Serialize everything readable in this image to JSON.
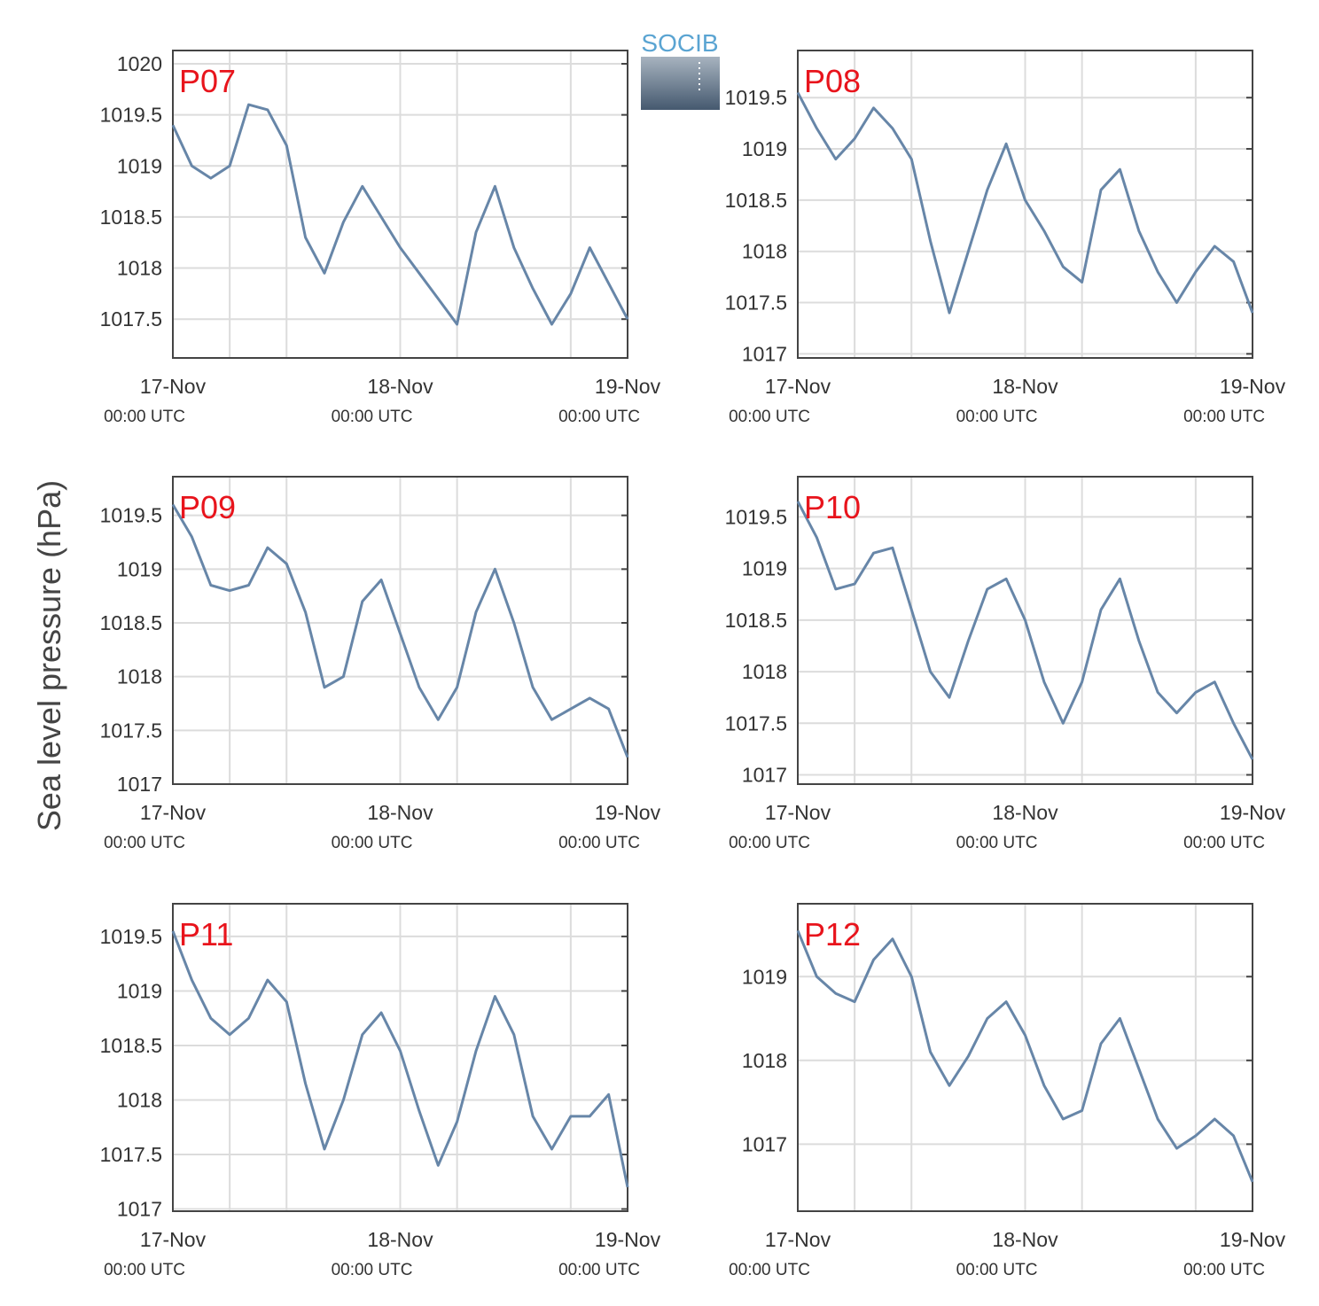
{
  "logo": "SOCIB",
  "ylabel": "Sea level pressure (hPa)",
  "chart_data": [
    {
      "type": "line",
      "title": "P07",
      "title_color": "#e8141c",
      "color": "#6786a8",
      "grid": true,
      "x": [
        0,
        2,
        4,
        6,
        8,
        10,
        12,
        14,
        16,
        18,
        20,
        22,
        24,
        26,
        28,
        30,
        32,
        34,
        36,
        38,
        40,
        42,
        44,
        46,
        48
      ],
      "values": [
        1019.4,
        1019.0,
        1018.88,
        1019.0,
        1019.6,
        1019.55,
        1019.2,
        1018.3,
        1017.95,
        1018.45,
        1018.8,
        1018.5,
        1018.2,
        1017.95,
        1017.7,
        1017.45,
        1018.35,
        1018.8,
        1018.2,
        1017.8,
        1017.45,
        1017.75,
        1018.2,
        1017.85,
        1017.5
      ],
      "xlim": [
        0,
        48
      ],
      "xticks": [
        {
          "value": 0,
          "label": "17-Nov",
          "sublabel": "00:00 UTC"
        },
        {
          "value": 24,
          "label": "18-Nov",
          "sublabel": "00:00 UTC"
        },
        {
          "value": 48,
          "label": "19-Nov",
          "sublabel": "00:00 UTC"
        }
      ],
      "xgrid": [
        6,
        12,
        30,
        42
      ],
      "ylim": [
        1017.12,
        1020.13
      ],
      "yticks": [
        1017.5,
        1018,
        1018.5,
        1019,
        1019.5,
        1020
      ]
    },
    {
      "type": "line",
      "title": "P08",
      "title_color": "#e8141c",
      "color": "#6786a8",
      "grid": true,
      "x": [
        0,
        2,
        4,
        6,
        8,
        10,
        12,
        14,
        16,
        18,
        20,
        22,
        24,
        26,
        28,
        30,
        32,
        34,
        36,
        38,
        40,
        42,
        44,
        46,
        48
      ],
      "values": [
        1019.55,
        1019.2,
        1018.9,
        1019.1,
        1019.4,
        1019.2,
        1018.9,
        1018.1,
        1017.4,
        1018.0,
        1018.6,
        1019.05,
        1018.5,
        1018.2,
        1017.85,
        1017.7,
        1018.6,
        1018.8,
        1018.2,
        1017.8,
        1017.5,
        1017.8,
        1018.05,
        1017.9,
        1017.4
      ],
      "xlim": [
        0,
        48
      ],
      "xticks": [
        {
          "value": 0,
          "label": "17-Nov",
          "sublabel": "00:00 UTC"
        },
        {
          "value": 24,
          "label": "18-Nov",
          "sublabel": "00:00 UTC"
        },
        {
          "value": 48,
          "label": "19-Nov",
          "sublabel": "00:00 UTC"
        }
      ],
      "xgrid": [
        6,
        12,
        30,
        42
      ],
      "ylim": [
        1016.96,
        1019.96
      ],
      "yticks": [
        1017,
        1017.5,
        1018,
        1018.5,
        1019,
        1019.5
      ]
    },
    {
      "type": "line",
      "title": "P09",
      "title_color": "#e8141c",
      "color": "#6786a8",
      "grid": true,
      "x": [
        0,
        2,
        4,
        6,
        8,
        10,
        12,
        14,
        16,
        18,
        20,
        22,
        24,
        26,
        28,
        30,
        32,
        34,
        36,
        38,
        40,
        42,
        44,
        46,
        48
      ],
      "values": [
        1019.6,
        1019.3,
        1018.85,
        1018.8,
        1018.85,
        1019.2,
        1019.05,
        1018.6,
        1017.9,
        1018.0,
        1018.7,
        1018.9,
        1018.4,
        1017.9,
        1017.6,
        1017.9,
        1018.6,
        1019.0,
        1018.5,
        1017.9,
        1017.6,
        1017.7,
        1017.8,
        1017.7,
        1017.25
      ],
      "xlim": [
        0,
        48
      ],
      "xticks": [
        {
          "value": 0,
          "label": "17-Nov",
          "sublabel": "00:00 UTC"
        },
        {
          "value": 24,
          "label": "18-Nov",
          "sublabel": "00:00 UTC"
        },
        {
          "value": 48,
          "label": "19-Nov",
          "sublabel": "00:00 UTC"
        }
      ],
      "xgrid": [
        6,
        12,
        30,
        42
      ],
      "ylim": [
        1017,
        1019.86
      ],
      "yticks": [
        1017,
        1017.5,
        1018,
        1018.5,
        1019,
        1019.5
      ]
    },
    {
      "type": "line",
      "title": "P10",
      "title_color": "#e8141c",
      "color": "#6786a8",
      "grid": true,
      "x": [
        0,
        2,
        4,
        6,
        8,
        10,
        12,
        14,
        16,
        18,
        20,
        22,
        24,
        26,
        28,
        30,
        32,
        34,
        36,
        38,
        40,
        42,
        44,
        46,
        48
      ],
      "values": [
        1019.65,
        1019.3,
        1018.8,
        1018.85,
        1019.15,
        1019.2,
        1018.6,
        1018.0,
        1017.75,
        1018.3,
        1018.8,
        1018.9,
        1018.5,
        1017.9,
        1017.5,
        1017.9,
        1018.6,
        1018.9,
        1018.3,
        1017.8,
        1017.6,
        1017.8,
        1017.9,
        1017.5,
        1017.15
      ],
      "xlim": [
        0,
        48
      ],
      "xticks": [
        {
          "value": 0,
          "label": "17-Nov",
          "sublabel": "00:00 UTC"
        },
        {
          "value": 24,
          "label": "18-Nov",
          "sublabel": "00:00 UTC"
        },
        {
          "value": 48,
          "label": "19-Nov",
          "sublabel": "00:00 UTC"
        }
      ],
      "xgrid": [
        6,
        12,
        30,
        42
      ],
      "ylim": [
        1016.91,
        1019.89
      ],
      "yticks": [
        1017,
        1017.5,
        1018,
        1018.5,
        1019,
        1019.5
      ]
    },
    {
      "type": "line",
      "title": "P11",
      "title_color": "#e8141c",
      "color": "#6786a8",
      "grid": true,
      "x": [
        0,
        2,
        4,
        6,
        8,
        10,
        12,
        14,
        16,
        18,
        20,
        22,
        24,
        26,
        28,
        30,
        32,
        34,
        36,
        38,
        40,
        42,
        44,
        46,
        48
      ],
      "values": [
        1019.55,
        1019.1,
        1018.75,
        1018.6,
        1018.75,
        1019.1,
        1018.9,
        1018.15,
        1017.55,
        1018.0,
        1018.6,
        1018.8,
        1018.45,
        1017.9,
        1017.4,
        1017.8,
        1018.45,
        1018.95,
        1018.6,
        1017.85,
        1017.55,
        1017.85,
        1017.85,
        1018.05,
        1017.2
      ],
      "xlim": [
        0,
        48
      ],
      "xticks": [
        {
          "value": 0,
          "label": "17-Nov",
          "sublabel": "00:00 UTC"
        },
        {
          "value": 24,
          "label": "18-Nov",
          "sublabel": "00:00 UTC"
        },
        {
          "value": 48,
          "label": "19-Nov",
          "sublabel": "00:00 UTC"
        }
      ],
      "xgrid": [
        6,
        12,
        30,
        42
      ],
      "ylim": [
        1016.98,
        1019.8
      ],
      "yticks": [
        1017,
        1017.5,
        1018,
        1018.5,
        1019,
        1019.5
      ]
    },
    {
      "type": "line",
      "title": "P12",
      "title_color": "#e8141c",
      "color": "#6786a8",
      "grid": true,
      "x": [
        0,
        2,
        4,
        6,
        8,
        10,
        12,
        14,
        16,
        18,
        20,
        22,
        24,
        26,
        28,
        30,
        32,
        34,
        36,
        38,
        40,
        42,
        44,
        46,
        48
      ],
      "values": [
        1019.55,
        1019.0,
        1018.8,
        1018.7,
        1019.2,
        1019.45,
        1019.0,
        1018.1,
        1017.7,
        1018.05,
        1018.5,
        1018.7,
        1018.3,
        1017.7,
        1017.3,
        1017.4,
        1018.2,
        1018.5,
        1017.9,
        1017.3,
        1016.95,
        1017.1,
        1017.3,
        1017.1,
        1016.55
      ],
      "xlim": [
        0,
        48
      ],
      "xticks": [
        {
          "value": 0,
          "label": "17-Nov",
          "sublabel": "00:00 UTC"
        },
        {
          "value": 24,
          "label": "18-Nov",
          "sublabel": "00:00 UTC"
        },
        {
          "value": 48,
          "label": "19-Nov",
          "sublabel": "00:00 UTC"
        }
      ],
      "xgrid": [
        6,
        12,
        30,
        42
      ],
      "ylim": [
        1016.2,
        1019.87
      ],
      "yticks": [
        1017,
        1018,
        1019
      ]
    }
  ]
}
